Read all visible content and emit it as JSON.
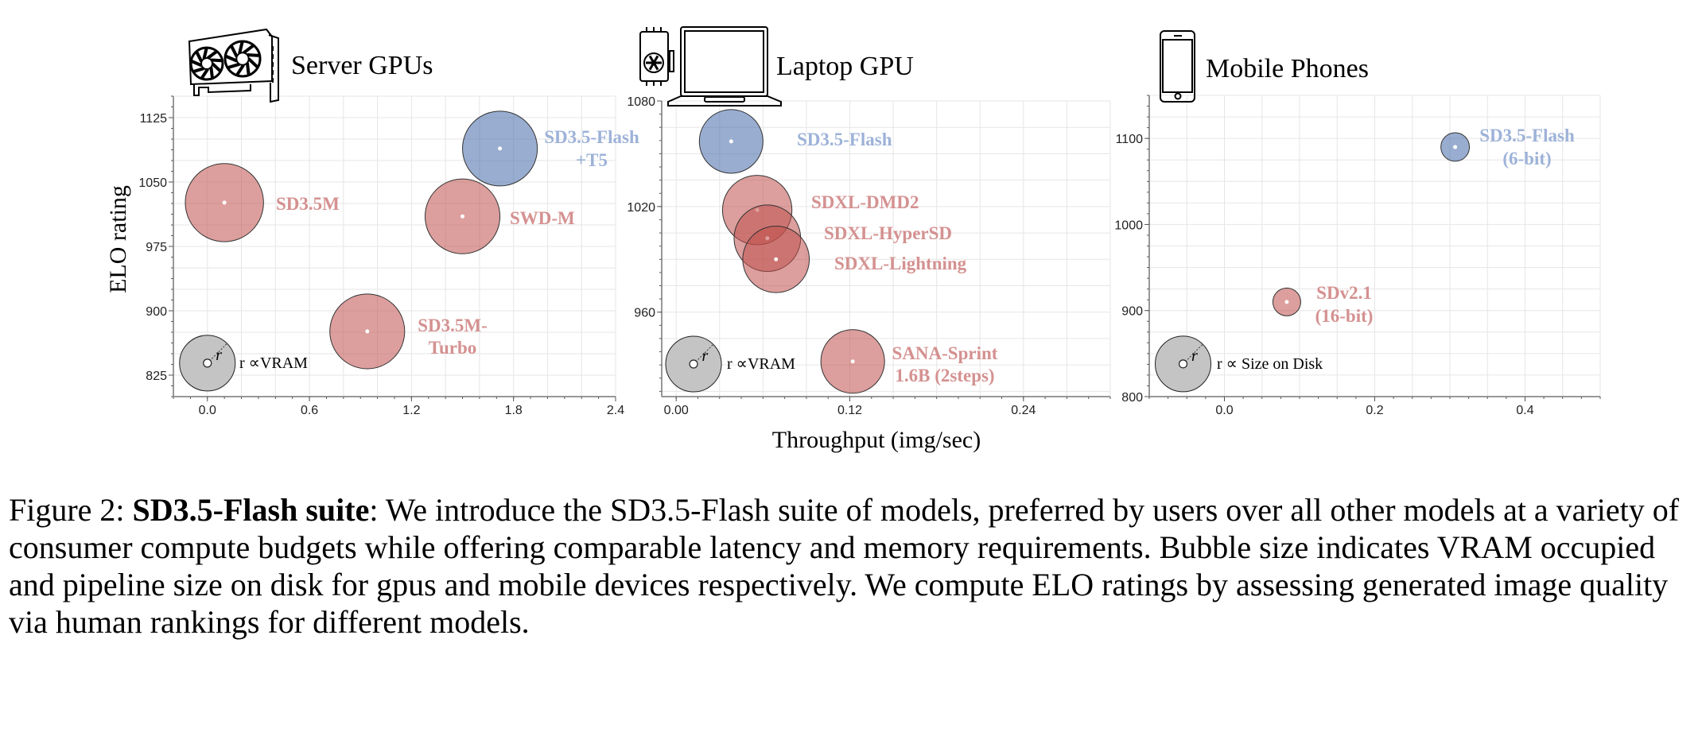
{
  "chart_data": [
    {
      "type": "scatter",
      "title": "Server GPUs",
      "title_icon": "server-gpu-card-icon",
      "xlabel": "",
      "ylabel": "ELO rating",
      "xlim": [
        -0.2,
        2.4
      ],
      "ylim": [
        800,
        1150
      ],
      "xticks": [
        "0.0",
        "0.6",
        "1.2",
        "1.8",
        "2.4"
      ],
      "yticks": [
        "825",
        "900",
        "975",
        "1050",
        "1125"
      ],
      "grid": true,
      "bubble_size_meaning": "VRAM",
      "points": [
        {
          "label": "SD3.5M",
          "x": 0.1,
          "y": 1026,
          "size": 0.23,
          "color": "red"
        },
        {
          "label": "SD3.5M-\nTurbo",
          "x": 0.94,
          "y": 876,
          "size": 0.22,
          "color": "red"
        },
        {
          "label": "SWD-M",
          "x": 1.5,
          "y": 1010,
          "size": 0.22,
          "color": "red"
        },
        {
          "label": "SD3.5-Flash\n+T5",
          "x": 1.72,
          "y": 1089,
          "size": 0.22,
          "color": "blue"
        }
      ],
      "legend": {
        "text": "r ∝VRAM",
        "symbol": "r",
        "placement": "bottom-left"
      }
    },
    {
      "type": "scatter",
      "title": "Laptop GPU",
      "title_icon": "laptop-gpu-icon",
      "xlabel": "Throughput (img/sec)",
      "ylabel": "",
      "xlim": [
        -0.01,
        0.3
      ],
      "ylim": [
        912,
        1080
      ],
      "xticks": [
        "0.00",
        "0.12",
        "0.24"
      ],
      "yticks": [
        "960",
        "1020",
        "1080"
      ],
      "grid": true,
      "bubble_size_meaning": "VRAM",
      "points": [
        {
          "label": "SD3.5-Flash",
          "x": 0.038,
          "y": 1057,
          "size": 0.022,
          "color": "blue"
        },
        {
          "label": "SDXL-DMD2",
          "x": 0.056,
          "y": 1018,
          "size": 0.024,
          "color": "red"
        },
        {
          "label": "SDXL-HyperSD",
          "x": 0.063,
          "y": 1002,
          "size": 0.023,
          "color": "red"
        },
        {
          "label": "SDXL-Lightning",
          "x": 0.069,
          "y": 990,
          "size": 0.023,
          "color": "red"
        },
        {
          "label": "SANA-Sprint\n1.6B (2steps)",
          "x": 0.122,
          "y": 932,
          "size": 0.022,
          "color": "red"
        }
      ],
      "legend": {
        "text": "r ∝VRAM",
        "symbol": "r",
        "placement": "bottom-left"
      }
    },
    {
      "type": "scatter",
      "title": "Mobile Phones",
      "title_icon": "mobile-phone-icon",
      "xlabel": "",
      "ylabel": "",
      "xlim": [
        -0.1,
        0.5
      ],
      "ylim": [
        800,
        1150
      ],
      "xticks": [
        "0.0",
        "0.2",
        "0.4"
      ],
      "yticks": [
        "800",
        "900",
        "1000",
        "1100"
      ],
      "grid": true,
      "bubble_size_meaning": "Size on Disk",
      "points": [
        {
          "label": "SDv2.1\n(16-bit)",
          "x": 0.083,
          "y": 910,
          "size": 0.0185,
          "color": "red"
        },
        {
          "label": "SD3.5-Flash\n(6-bit)",
          "x": 0.307,
          "y": 1090,
          "size": 0.019,
          "color": "blue"
        }
      ],
      "legend": {
        "text": "r ∝ Size on Disk",
        "symbol": "r",
        "placement": "bottom-left"
      }
    }
  ],
  "colors": {
    "red_fill": "#c0504d",
    "blue_fill": "#4669aa",
    "red_label": "#d49190",
    "blue_label": "#9db2d8",
    "legend_fill": "#c4c4c4",
    "grid": "#e6e6e6"
  },
  "caption": {
    "prefix": "Figure 2: ",
    "bold": "SD3.5-Flash suite",
    "text": ": We introduce the SD3.5-Flash suite of models, preferred by users over all other models at a variety of consumer compute budgets while offering comparable latency and memory requirements. Bubble size indicates VRAM occupied and pipeline size on disk for gpus and mobile devices respectively. We compute ELO ratings by assessing generated image quality via human rankings for different models."
  }
}
